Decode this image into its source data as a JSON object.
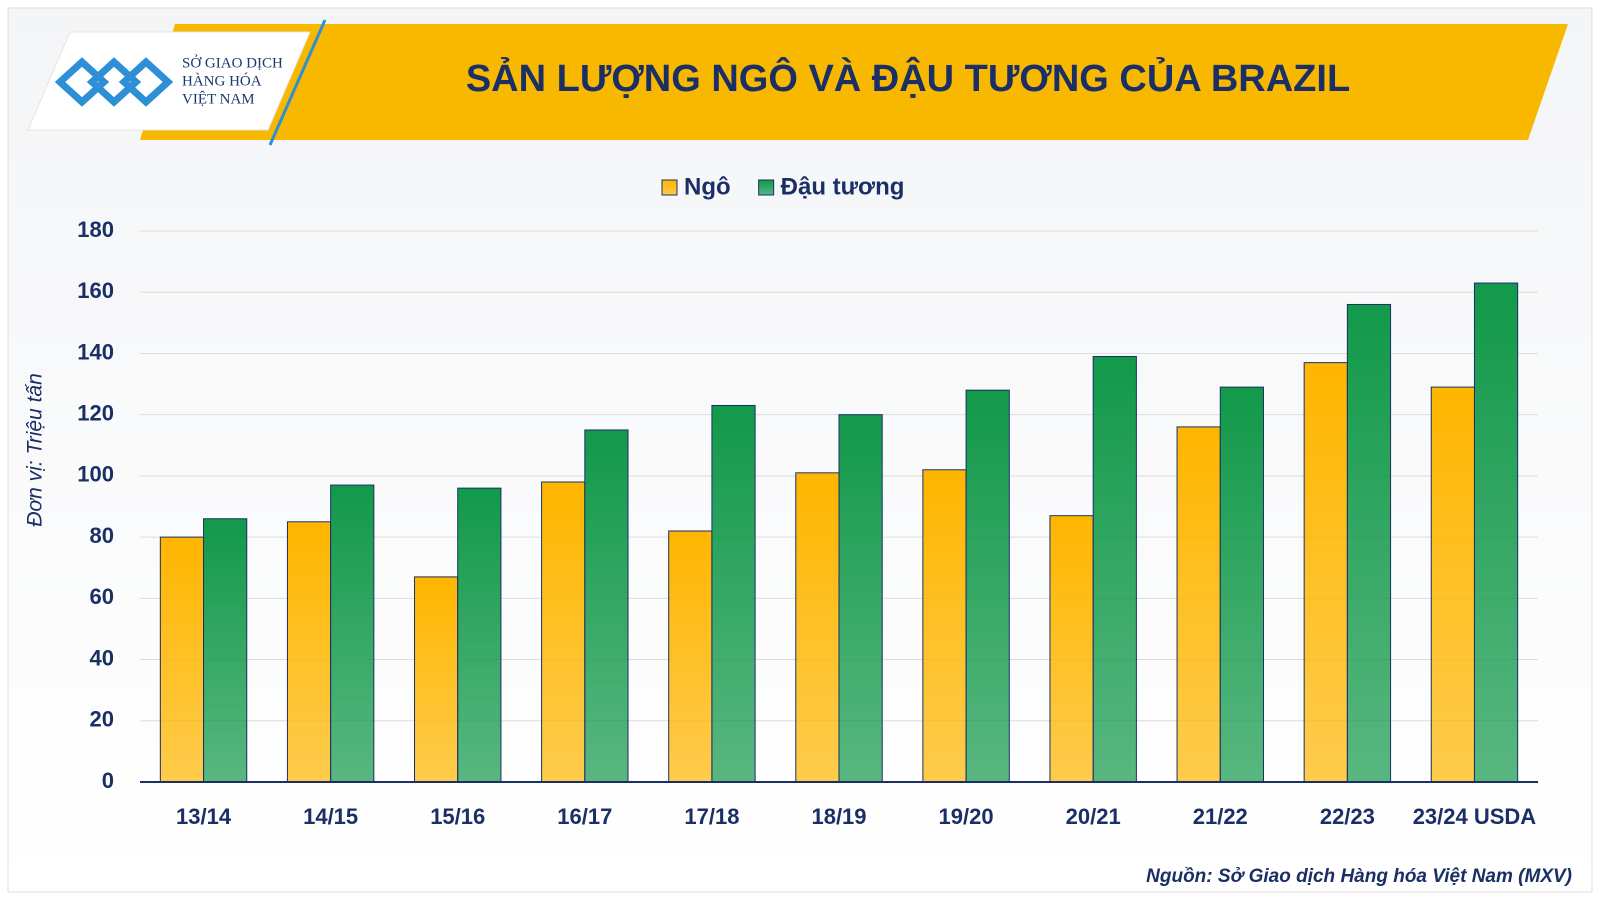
{
  "logo": [
    "SỞ GIAO DỊCH",
    "HÀNG HÓA",
    "VIỆT NAM"
  ],
  "chart_data": {
    "type": "bar",
    "title": "SẢN LƯỢNG NGÔ VÀ ĐẬU TƯƠNG CỦA BRAZIL",
    "y_label": "Đơn vị: Triệu tấn",
    "source": "Nguồn: Sở Giao dịch Hàng hóa Việt Nam (MXV)",
    "categories": [
      "13/14",
      "14/15",
      "15/16",
      "16/17",
      "17/18",
      "18/19",
      "19/20",
      "20/21",
      "21/22",
      "22/23",
      "23/24 USDA"
    ],
    "series": [
      {
        "name": "Ngô",
        "color": "#ffb600",
        "values": [
          80,
          85,
          67,
          98,
          82,
          101,
          102,
          87,
          116,
          137,
          129
        ]
      },
      {
        "name": "Đậu tương",
        "color": "#12994a",
        "values": [
          86,
          97,
          96,
          115,
          123,
          120,
          128,
          139,
          129,
          156,
          163
        ]
      }
    ],
    "ylim": [
      0,
      180
    ],
    "yticks": [
      0,
      20,
      40,
      60,
      80,
      100,
      120,
      140,
      160,
      180
    ],
    "grid": true,
    "legend": "top"
  }
}
